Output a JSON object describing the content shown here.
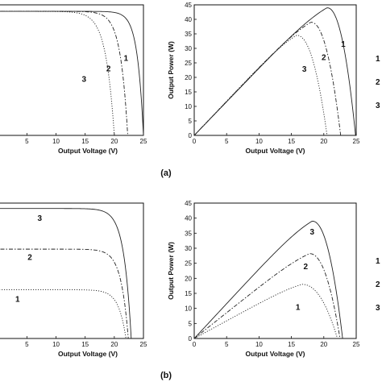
{
  "panel_labels": {
    "a": "(a)",
    "b": "(b)"
  },
  "chart_data": [
    {
      "id": "a_iv",
      "type": "line",
      "xlabel": "Output Voltage (V)",
      "ylabel": "",
      "xlim": [
        -1.0,
        25
      ],
      "ylim": [
        0,
        1
      ],
      "xticks": [
        5,
        10,
        15,
        20,
        25
      ],
      "yticks": [],
      "series": [
        {
          "label": "1",
          "style": "solid",
          "isc": 0.95,
          "voc": 25.0,
          "a": 1.05,
          "label_at": [
            22.0,
            0.57
          ]
        },
        {
          "label": "2",
          "style": "dashdot",
          "isc": 0.95,
          "voc": 22.3,
          "a": 1.25,
          "label_at": [
            19.0,
            0.49
          ]
        },
        {
          "label": "3",
          "style": "dotted",
          "isc": 0.95,
          "voc": 20.0,
          "a": 1.45,
          "label_at": [
            14.8,
            0.41
          ]
        }
      ]
    },
    {
      "id": "a_pv",
      "type": "line",
      "xlabel": "Output Voltage (V)",
      "ylabel": "Output Power (W)",
      "xlim": [
        0,
        25
      ],
      "ylim": [
        0,
        45
      ],
      "xticks": [
        0,
        5,
        10,
        15,
        20,
        25
      ],
      "yticks": [
        0,
        5,
        10,
        15,
        20,
        25,
        30,
        35,
        40,
        45
      ],
      "series": [
        {
          "label": "1",
          "style": "solid",
          "vmp": 20.5,
          "pmp": 44,
          "voc": 24.9,
          "label_at": [
            23.0,
            30.5
          ]
        },
        {
          "label": "2",
          "style": "dashdot",
          "vmp": 18.0,
          "pmp": 39,
          "voc": 22.6,
          "label_at": [
            20.0,
            26.0
          ]
        },
        {
          "label": "3",
          "style": "dotted",
          "vmp": 15.8,
          "pmp": 34.5,
          "voc": 20.5,
          "label_at": [
            17.0,
            22.0
          ]
        }
      ]
    },
    {
      "id": "b_iv",
      "type": "line",
      "xlabel": "Output Voltage (V)",
      "ylabel": "",
      "xlim": [
        -1.0,
        25
      ],
      "ylim": [
        0,
        1
      ],
      "xticks": [
        5,
        10,
        15,
        20,
        25
      ],
      "yticks": [],
      "series": [
        {
          "label": "3",
          "style": "solid",
          "isc": 0.96,
          "voc": 22.9,
          "a": 1.25,
          "label_at": [
            7.2,
            0.87
          ]
        },
        {
          "label": "2",
          "style": "dashdot",
          "isc": 0.66,
          "voc": 22.4,
          "a": 1.25,
          "label_at": [
            5.5,
            0.58
          ]
        },
        {
          "label": "1",
          "style": "dotted",
          "isc": 0.36,
          "voc": 22.0,
          "a": 1.25,
          "label_at": [
            3.4,
            0.27
          ]
        }
      ]
    },
    {
      "id": "b_pv",
      "type": "line",
      "xlabel": "Output Voltage (V)",
      "ylabel": "Output Power (W)",
      "xlim": [
        0,
        25
      ],
      "ylim": [
        0,
        45
      ],
      "xticks": [
        0,
        5,
        10,
        15,
        20,
        25
      ],
      "yticks": [
        0,
        5,
        10,
        15,
        20,
        25,
        30,
        35,
        40,
        45
      ],
      "series": [
        {
          "label": "3",
          "style": "solid",
          "vmp": 18.2,
          "pmp": 39,
          "voc": 22.9,
          "label_at": [
            18.2,
            34.5
          ]
        },
        {
          "label": "2",
          "style": "dashdot",
          "vmp": 17.8,
          "pmp": 28.2,
          "voc": 22.5,
          "label_at": [
            17.2,
            23.0
          ]
        },
        {
          "label": "1",
          "style": "dotted",
          "vmp": 16.6,
          "pmp": 18,
          "voc": 22.1,
          "label_at": [
            16.0,
            9.5
          ]
        }
      ]
    }
  ],
  "side_labels": [
    {
      "panel": "a",
      "items": [
        "1",
        "2",
        "3"
      ]
    },
    {
      "panel": "b",
      "items": [
        "1",
        "2",
        "3"
      ]
    }
  ]
}
